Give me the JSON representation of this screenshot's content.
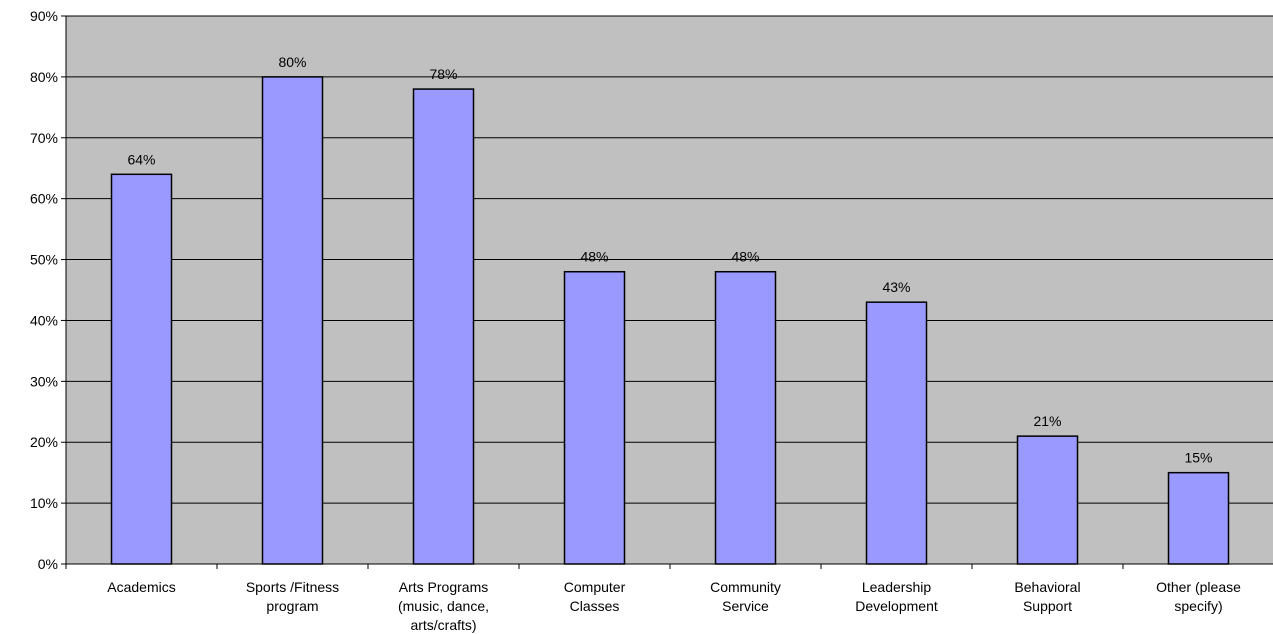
{
  "chart_data": {
    "type": "bar",
    "categories": [
      [
        "Academics"
      ],
      [
        "Sports /Fitness",
        "program"
      ],
      [
        "Arts Programs",
        "(music, dance,",
        "arts/crafts)"
      ],
      [
        "Computer",
        "Classes"
      ],
      [
        "Community",
        "Service"
      ],
      [
        "Leadership",
        "Development"
      ],
      [
        "Behavioral",
        "Support"
      ],
      [
        "Other (please",
        "specify)"
      ]
    ],
    "values": [
      64,
      80,
      78,
      48,
      48,
      43,
      21,
      15
    ],
    "data_labels": [
      "64%",
      "80%",
      "78%",
      "48%",
      "48%",
      "43%",
      "21%",
      "15%"
    ],
    "y_ticks": [
      "0%",
      "10%",
      "20%",
      "30%",
      "40%",
      "50%",
      "60%",
      "70%",
      "80%",
      "90%"
    ],
    "ylim": [
      0,
      90
    ],
    "grid": true,
    "legend": "none",
    "colors": {
      "plot_bg": "#c0c0c0",
      "bar_fill": "#9999ff",
      "bar_stroke": "#000000",
      "grid": "#000000"
    }
  }
}
